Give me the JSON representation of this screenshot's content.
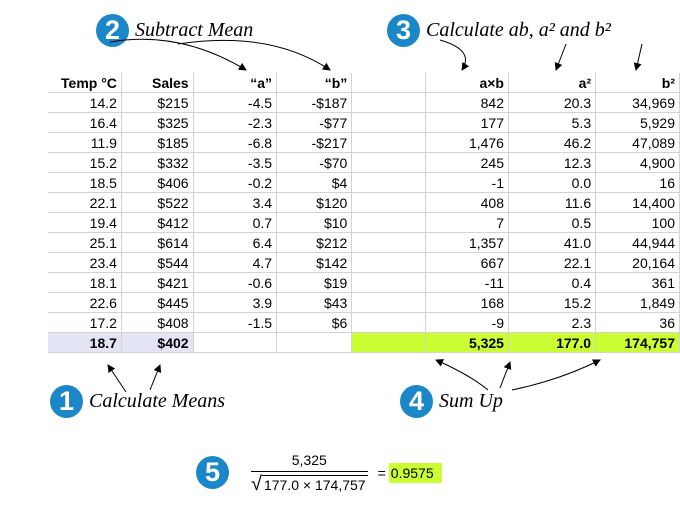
{
  "steps": [
    {
      "number": "1",
      "label": "Calculate Means"
    },
    {
      "number": "2",
      "label": "Subtract Mean"
    },
    {
      "number": "3",
      "label": "Calculate ab, a² and b²"
    },
    {
      "number": "4",
      "label": "Sum Up"
    },
    {
      "number": "5",
      "label": ""
    }
  ],
  "headers": [
    "Temp °C",
    "Sales",
    "“a”",
    "“b”",
    "a×b",
    "a²",
    "b²"
  ],
  "rows": [
    [
      "14.2",
      "$215",
      "-4.5",
      "-$187",
      "842",
      "20.3",
      "34,969"
    ],
    [
      "16.4",
      "$325",
      "-2.3",
      "-$77",
      "177",
      "5.3",
      "5,929"
    ],
    [
      "11.9",
      "$185",
      "-6.8",
      "-$217",
      "1,476",
      "46.2",
      "47,089"
    ],
    [
      "15.2",
      "$332",
      "-3.5",
      "-$70",
      "245",
      "12.3",
      "4,900"
    ],
    [
      "18.5",
      "$406",
      "-0.2",
      "$4",
      "-1",
      "0.0",
      "16"
    ],
    [
      "22.1",
      "$522",
      "3.4",
      "$120",
      "408",
      "11.6",
      "14,400"
    ],
    [
      "19.4",
      "$412",
      "0.7",
      "$10",
      "7",
      "0.5",
      "100"
    ],
    [
      "25.1",
      "$614",
      "6.4",
      "$212",
      "1,357",
      "41.0",
      "44,944"
    ],
    [
      "23.4",
      "$544",
      "4.7",
      "$142",
      "667",
      "22.1",
      "20,164"
    ],
    [
      "18.1",
      "$421",
      "-0.6",
      "$19",
      "-11",
      "0.4",
      "361"
    ],
    [
      "22.6",
      "$445",
      "3.9",
      "$43",
      "168",
      "15.2",
      "1,849"
    ],
    [
      "17.2",
      "$408",
      "-1.5",
      "$6",
      "-9",
      "2.3",
      "36"
    ]
  ],
  "means": {
    "temp": "18.7",
    "sales": "$402"
  },
  "sums": {
    "ab": "5,325",
    "a2": "177.0",
    "b2": "174,757"
  },
  "formula": {
    "numerator": "5,325",
    "sqrt_symbol": "√",
    "denominator": "177.0 × 174,757",
    "equals": "=",
    "result": "0.9575"
  },
  "colors": {
    "badge": "#1b87c9",
    "mean_fill": "#e4e4f7",
    "sum_fill": "#ccff33",
    "grid": "#d3d3d3"
  }
}
